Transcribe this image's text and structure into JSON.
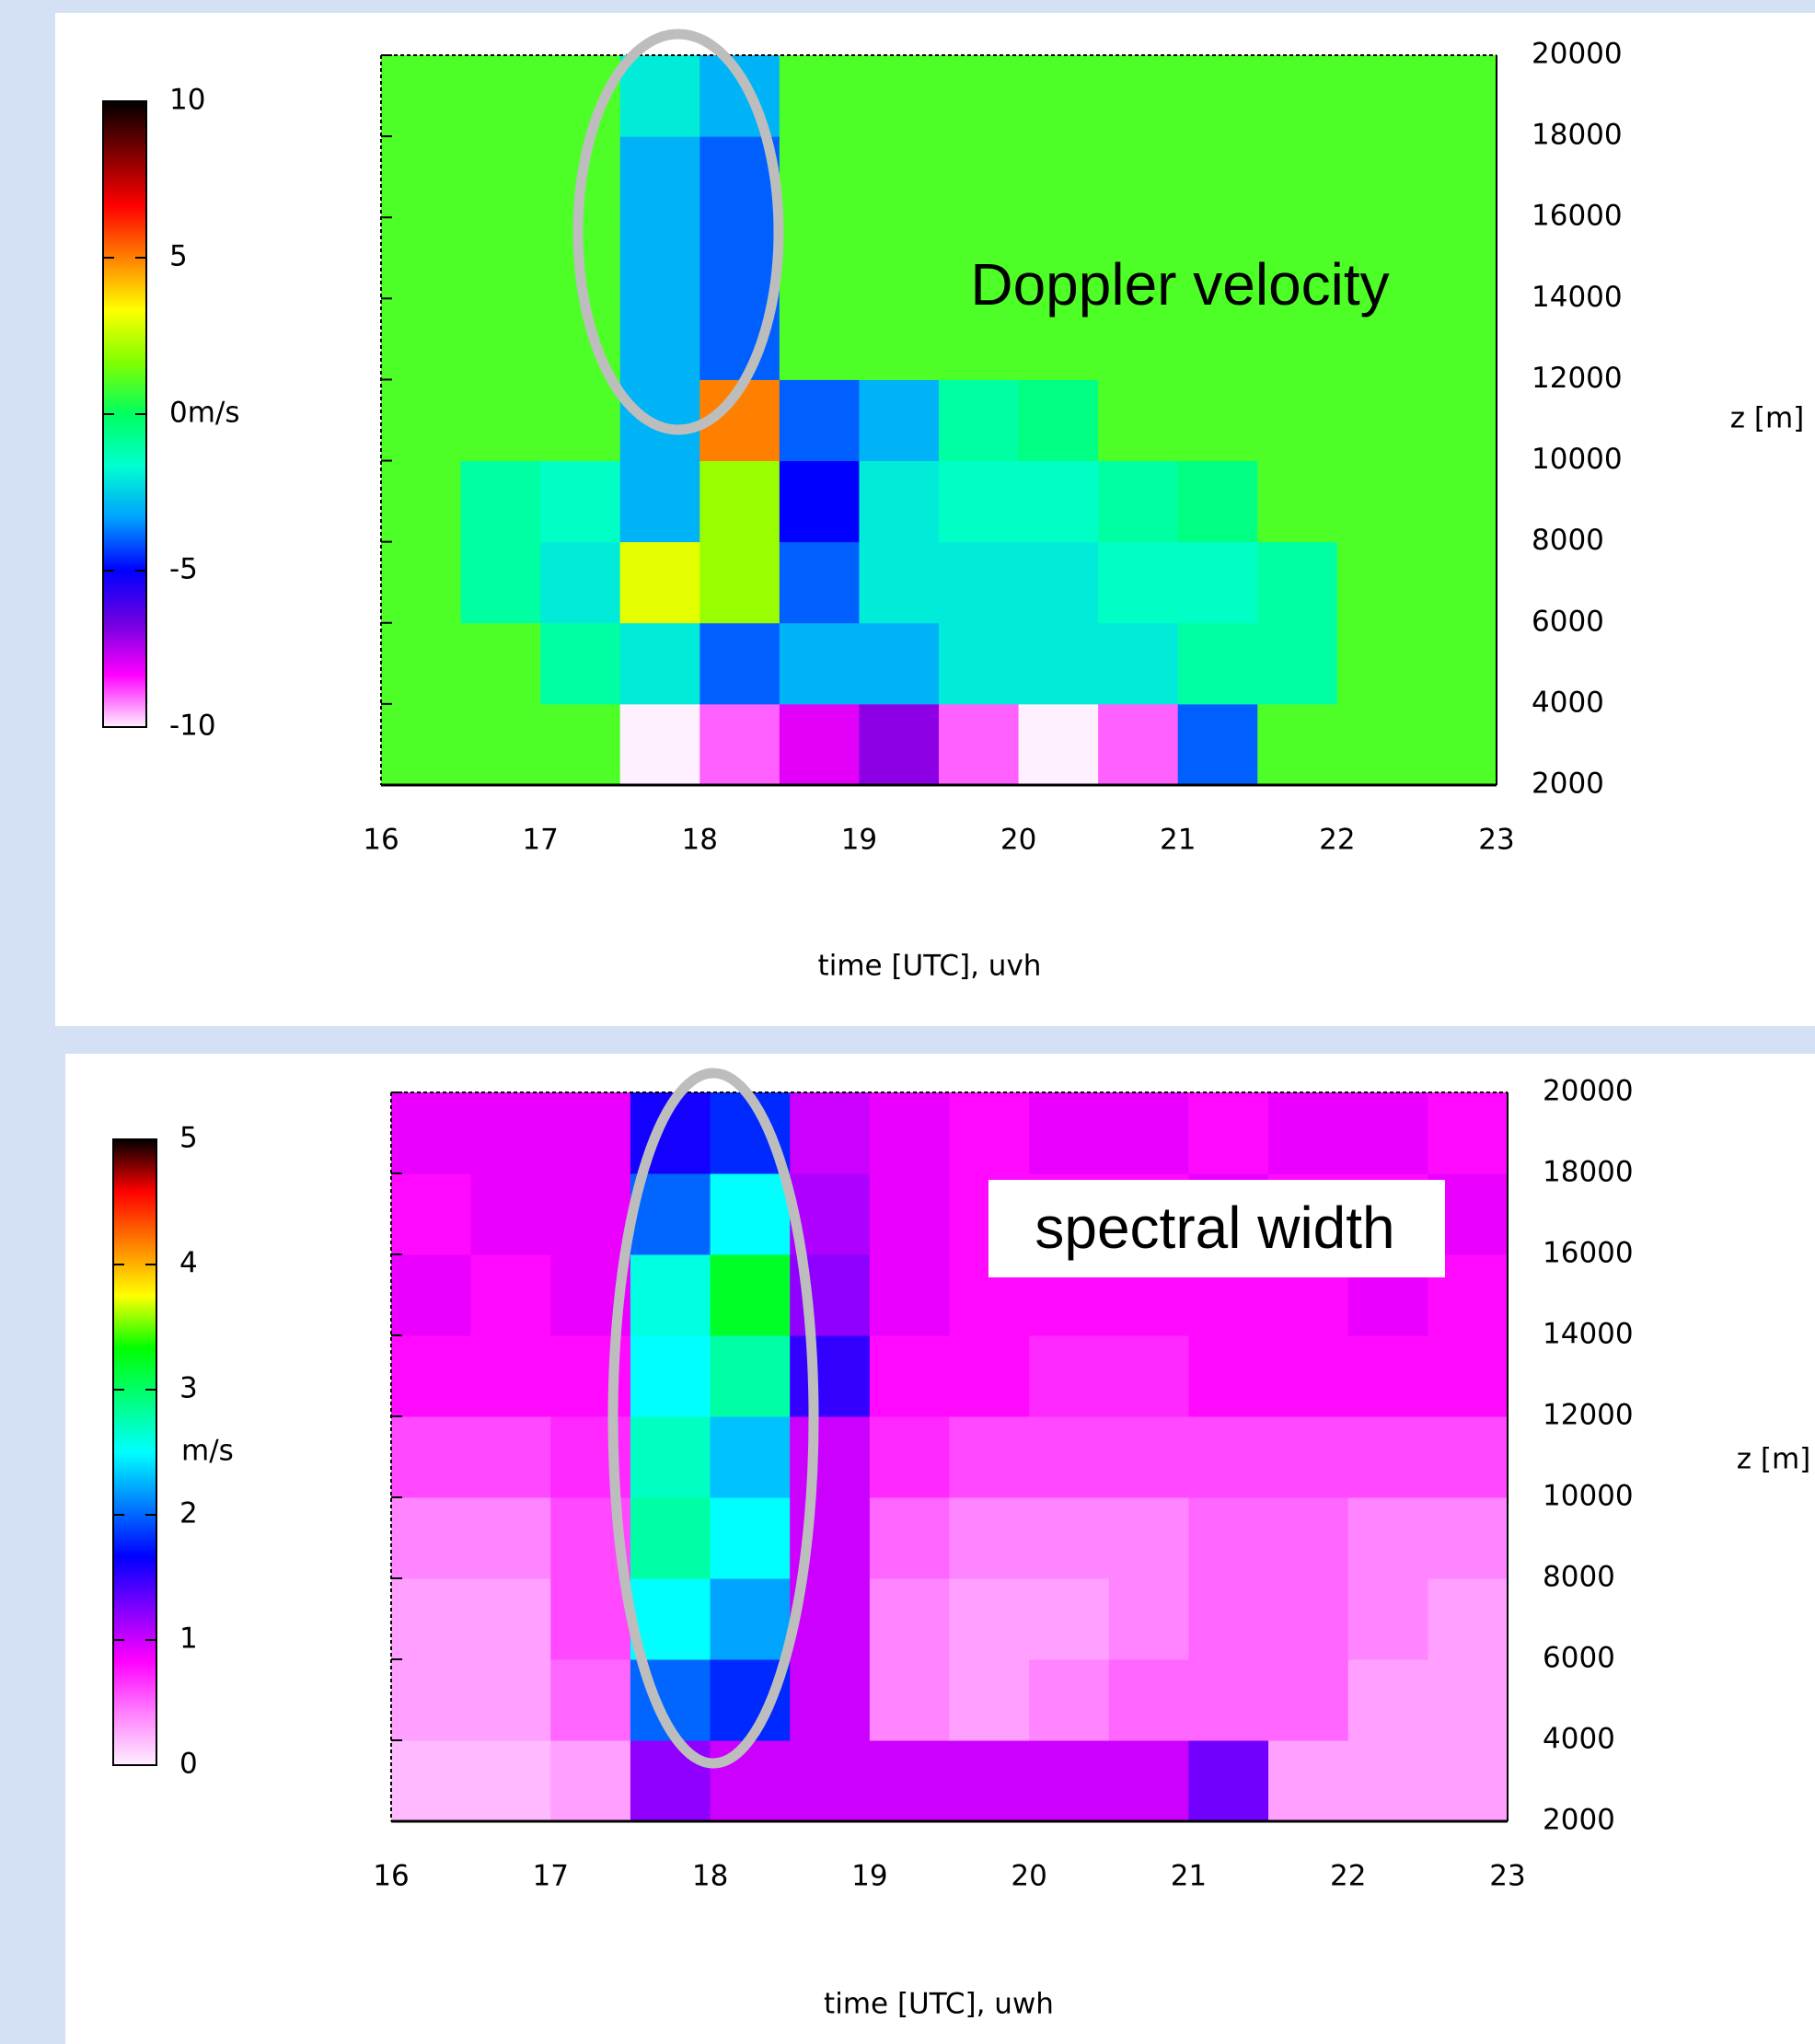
{
  "chart_data": [
    {
      "type": "heatmap",
      "annotation": "Doppler velocity",
      "xlabel": "time [UTC], uvh",
      "ylabel": "z [m]",
      "x": [
        16.25,
        16.75,
        17.25,
        17.75,
        18.25,
        18.75,
        19.25,
        19.75,
        20.25,
        20.75,
        21.25,
        21.75,
        22.25,
        22.75
      ],
      "y": [
        3000,
        5000,
        7000,
        9000,
        11000,
        13000,
        15000,
        17000,
        19000
      ],
      "z": [
        [
          1,
          1,
          1,
          -10,
          -9,
          -8,
          -7,
          -9,
          -10,
          -9,
          -4,
          1,
          1,
          1
        ],
        [
          1,
          1,
          -1,
          -2,
          -4,
          -3,
          -3,
          -2,
          -2,
          -2,
          -1,
          -1,
          1,
          1
        ],
        [
          1,
          -1,
          -2,
          3,
          2,
          -4,
          -2,
          -2,
          -2,
          -1.5,
          -1.5,
          -1,
          1,
          1
        ],
        [
          1,
          -1,
          -1.5,
          -3,
          2,
          -5,
          -2,
          -1.5,
          -1.5,
          -1,
          -0.5,
          1,
          1,
          1
        ],
        [
          1,
          1,
          1,
          -3,
          5,
          -4,
          -3,
          -1,
          -0.5,
          1,
          1,
          1,
          1,
          1
        ],
        [
          1,
          1,
          1,
          -3,
          -4,
          1,
          1,
          1,
          1,
          1,
          1,
          1,
          1,
          1
        ],
        [
          1,
          1,
          1,
          -3,
          -4,
          1,
          1,
          1,
          1,
          1,
          1,
          1,
          1,
          1
        ],
        [
          1,
          1,
          1,
          -3,
          -4,
          1,
          1,
          1,
          1,
          1,
          1,
          1,
          1,
          1
        ],
        [
          1,
          1,
          1,
          -2,
          -3,
          1,
          1,
          1,
          1,
          1,
          1,
          1,
          1,
          1
        ]
      ],
      "xlim": [
        16,
        23
      ],
      "xticks": [
        16,
        17,
        18,
        19,
        20,
        21,
        22,
        23
      ],
      "ylim": [
        2000,
        20000
      ],
      "yticks": [
        2000,
        4000,
        6000,
        8000,
        10000,
        12000,
        14000,
        16000,
        18000,
        20000
      ],
      "clim": [
        -10,
        10
      ],
      "cticks": [
        -10,
        -5,
        {
          "value": 0,
          "label": "0m/s"
        },
        5,
        10
      ],
      "colormap": [
        "#fff0ff",
        "#ff00ff",
        "#7000e0",
        "#0000ff",
        "#00a0ff",
        "#00ffd0",
        "#00ff60",
        "#80ff00",
        "#ffff00",
        "#ff8000",
        "#ff0000",
        "#800000",
        "#000000"
      ]
    },
    {
      "type": "heatmap",
      "annotation": "spectral width",
      "xlabel": "time [UTC], uwh",
      "ylabel": "z [m]",
      "colorbar_label": "m/s",
      "x": [
        16.25,
        16.75,
        17.25,
        17.75,
        18.25,
        18.75,
        19.25,
        19.75,
        20.25,
        20.75,
        21.25,
        21.75,
        22.25,
        22.75
      ],
      "y": [
        3000,
        5000,
        7000,
        9000,
        11000,
        13000,
        15000,
        17000,
        19000
      ],
      "z": [
        [
          0.2,
          0.2,
          0.3,
          1.2,
          1,
          1,
          1,
          1,
          1,
          1,
          1.3,
          0.3,
          0.3,
          0.3
        ],
        [
          0.3,
          0.3,
          0.5,
          2,
          1.8,
          1,
          0.4,
          0.3,
          0.4,
          0.5,
          0.5,
          0.5,
          0.3,
          0.3
        ],
        [
          0.3,
          0.3,
          0.6,
          2.5,
          2.2,
          1,
          0.4,
          0.3,
          0.3,
          0.4,
          0.5,
          0.5,
          0.4,
          0.3
        ],
        [
          0.4,
          0.4,
          0.6,
          2.8,
          2.5,
          1,
          0.5,
          0.4,
          0.4,
          0.4,
          0.5,
          0.5,
          0.4,
          0.4
        ],
        [
          0.6,
          0.6,
          0.7,
          2.7,
          2.3,
          1,
          0.7,
          0.6,
          0.6,
          0.6,
          0.6,
          0.6,
          0.6,
          0.6
        ],
        [
          0.8,
          0.8,
          0.8,
          2.5,
          2.8,
          1.5,
          0.8,
          0.8,
          0.7,
          0.7,
          0.8,
          0.8,
          0.8,
          0.8
        ],
        [
          0.9,
          0.8,
          0.9,
          2.6,
          3.2,
          1.2,
          0.9,
          0.8,
          0.8,
          0.8,
          0.8,
          0.8,
          0.9,
          0.8
        ],
        [
          0.8,
          0.9,
          0.9,
          2,
          2.5,
          1.1,
          0.9,
          0.8,
          0.8,
          0.8,
          0.9,
          0.8,
          0.8,
          0.9
        ],
        [
          0.9,
          0.9,
          0.9,
          1.6,
          1.8,
          1,
          0.9,
          0.8,
          0.9,
          0.9,
          0.8,
          0.9,
          0.9,
          0.8
        ]
      ],
      "xlim": [
        16,
        23
      ],
      "xticks": [
        16,
        17,
        18,
        19,
        20,
        21,
        22,
        23
      ],
      "ylim": [
        2000,
        20000
      ],
      "yticks": [
        2000,
        4000,
        6000,
        8000,
        10000,
        12000,
        14000,
        16000,
        18000,
        20000
      ],
      "clim": [
        0,
        5
      ],
      "cticks": [
        0,
        1,
        2,
        3,
        4,
        5
      ],
      "colormap": [
        "#fff0ff",
        "#ff80ff",
        "#ff00ff",
        "#8000ff",
        "#0000ff",
        "#0080ff",
        "#00ffff",
        "#00ff80",
        "#00ff00",
        "#ffff00",
        "#ff8000",
        "#ff0000",
        "#000000"
      ]
    }
  ]
}
